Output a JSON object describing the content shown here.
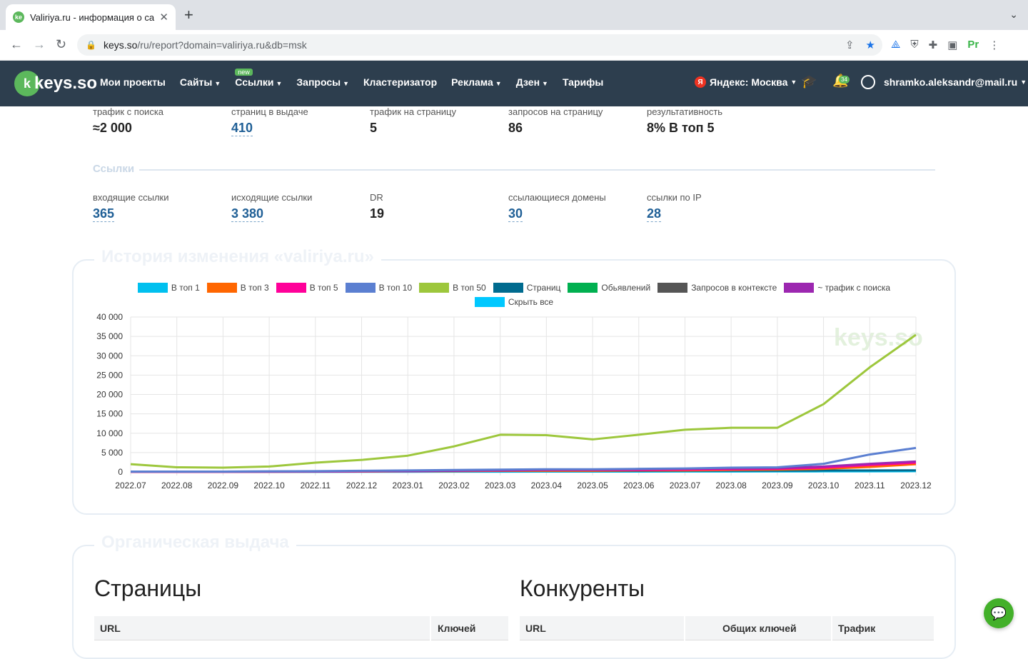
{
  "browser": {
    "tab_title": "Valiriya.ru - информация о сайте",
    "url_domain": "keys.so",
    "url_path": "/ru/report?domain=valiriya.ru&db=msk"
  },
  "header": {
    "logo": "keys.so",
    "menu": [
      "Мои проекты",
      "Сайты",
      "Ссылки",
      "Запросы",
      "Кластеризатор",
      "Реклама",
      "Дзен",
      "Тарифы"
    ],
    "new_badge": "new",
    "region": "Яндекс: Москва",
    "notifications": "34",
    "user": "shramko.aleksandr@mail.ru"
  },
  "metrics_top": [
    {
      "label": "трафик с поиска",
      "value": "≈2 000",
      "link": false
    },
    {
      "label": "страниц в выдаче",
      "value": "410",
      "link": true
    },
    {
      "label": "трафик на страницу",
      "value": "5",
      "link": false
    },
    {
      "label": "запросов на страницу",
      "value": "86",
      "link": false
    },
    {
      "label": "результативность",
      "value": "8% В топ 5",
      "link": false
    }
  ],
  "links_section": "Ссылки",
  "metrics_links": [
    {
      "label": "входящие ссылки",
      "value": "365",
      "link": true
    },
    {
      "label": "исходящие ссылки",
      "value": "3 380",
      "link": true
    },
    {
      "label": "DR",
      "value": "19",
      "link": false
    },
    {
      "label": "ссылающиеся домены",
      "value": "30",
      "link": true
    },
    {
      "label": "ссылки по IP",
      "value": "28",
      "link": true
    }
  ],
  "history_title": "История изменения «valiriya.ru»",
  "organic_title": "Органическая выдача",
  "legend": [
    {
      "name": "В топ 1",
      "color": "#00c0ef"
    },
    {
      "name": "В топ 3",
      "color": "#ff6600"
    },
    {
      "name": "В топ 5",
      "color": "#ff0099"
    },
    {
      "name": "В топ 10",
      "color": "#5b7fd1"
    },
    {
      "name": "В топ 50",
      "color": "#9dc73c"
    },
    {
      "name": "Страниц",
      "color": "#006b8f"
    },
    {
      "name": "Обьявлений",
      "color": "#00b050"
    },
    {
      "name": "Запросов в контексте",
      "color": "#555555"
    },
    {
      "name": "~ трафик с поиска",
      "color": "#9c27b0"
    },
    {
      "name": "Скрыть все",
      "color": "#00c8ff"
    }
  ],
  "chart_data": {
    "type": "line",
    "x": [
      "2022.07",
      "2022.08",
      "2022.09",
      "2022.10",
      "2022.11",
      "2022.12",
      "2023.01",
      "2023.02",
      "2023.03",
      "2023.04",
      "2023.05",
      "2023.06",
      "2023.07",
      "2023.08",
      "2023.09",
      "2023.10",
      "2023.11",
      "2023.12"
    ],
    "ylim": [
      0,
      40000
    ],
    "yticks": [
      "0",
      "5 000",
      "10 000",
      "15 000",
      "20 000",
      "25 000",
      "30 000",
      "35 000",
      "40 000"
    ],
    "series": [
      {
        "name": "В топ 50",
        "color": "#9dc73c",
        "values": [
          2000,
          1200,
          1100,
          1400,
          2400,
          3100,
          4200,
          6600,
          9600,
          9500,
          8400,
          9600,
          10900,
          11400,
          11400,
          17500,
          27000,
          35400
        ]
      },
      {
        "name": "В топ 10",
        "color": "#5b7fd1",
        "values": [
          100,
          100,
          100,
          150,
          200,
          300,
          400,
          500,
          600,
          700,
          700,
          800,
          900,
          1100,
          1200,
          2100,
          4500,
          6200
        ]
      },
      {
        "name": "~ трафик с поиска",
        "color": "#9c27b0",
        "values": [
          50,
          50,
          50,
          60,
          100,
          150,
          200,
          300,
          500,
          600,
          600,
          700,
          800,
          900,
          1000,
          1400,
          2100,
          2700
        ]
      },
      {
        "name": "В топ 5",
        "color": "#ff0099",
        "values": [
          50,
          50,
          50,
          60,
          100,
          150,
          200,
          300,
          400,
          500,
          500,
          500,
          600,
          700,
          800,
          1100,
          1800,
          2400
        ]
      },
      {
        "name": "В топ 3",
        "color": "#ff6600",
        "values": [
          30,
          30,
          30,
          40,
          80,
          100,
          150,
          200,
          300,
          300,
          300,
          400,
          400,
          500,
          600,
          800,
          1300,
          2000
        ]
      },
      {
        "name": "Страниц",
        "color": "#006b8f",
        "values": [
          100,
          100,
          100,
          120,
          150,
          180,
          200,
          220,
          250,
          260,
          260,
          280,
          300,
          320,
          330,
          360,
          390,
          410
        ]
      },
      {
        "name": "В топ 1",
        "color": "#00c0ef",
        "values": [
          10,
          10,
          10,
          20,
          30,
          40,
          50,
          60,
          80,
          90,
          90,
          100,
          110,
          120,
          130,
          150,
          170,
          200
        ]
      }
    ]
  },
  "pages_title": "Страницы",
  "competitors_title": "Конкуренты",
  "pages_table": {
    "headers": [
      "URL",
      "Ключей"
    ]
  },
  "competitors_table": {
    "headers": [
      "URL",
      "Общих ключей",
      "Трафик"
    ]
  },
  "watermark": "keys.so"
}
